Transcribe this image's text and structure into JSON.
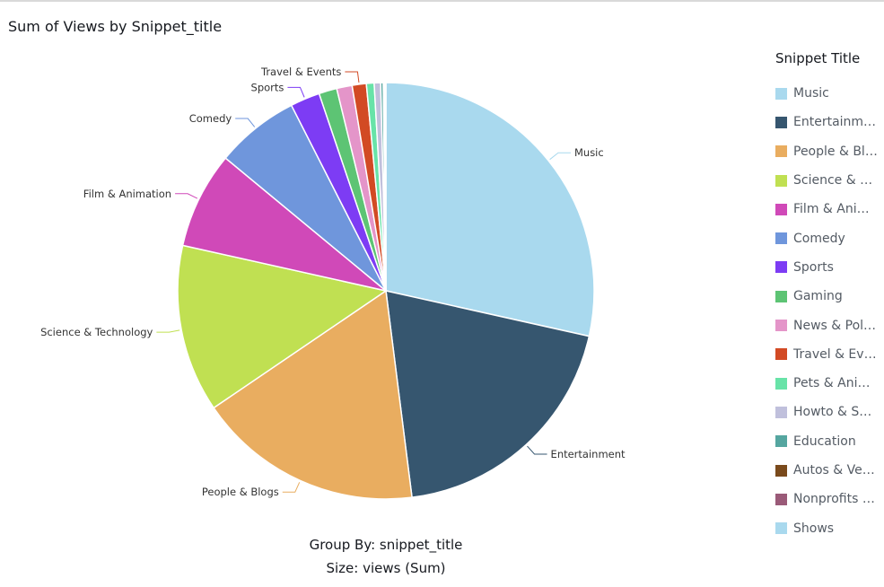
{
  "chart_data": {
    "type": "pie",
    "title": "Sum of Views by Snippet_title",
    "subtitle_group": "Group By: snippet_title",
    "subtitle_size": "Size: views (Sum)",
    "legend_title": "Snippet Title",
    "legend_position": "right",
    "slices": [
      {
        "name": "Music",
        "value": 28.5,
        "color": "#a9d9ee",
        "label": "Music"
      },
      {
        "name": "Entertainment",
        "value": 19.5,
        "color": "#36566f",
        "label": "Entertainment"
      },
      {
        "name": "People & Blogs",
        "value": 17.5,
        "color": "#e9ad60",
        "label": "People & Blogs"
      },
      {
        "name": "Science & Technology",
        "value": 13.0,
        "color": "#c0e052",
        "label": "Science & Technology"
      },
      {
        "name": "Film & Animation",
        "value": 7.5,
        "color": "#d049b8",
        "label": "Film & Animation"
      },
      {
        "name": "Comedy",
        "value": 6.5,
        "color": "#6f96dc",
        "label": "Comedy"
      },
      {
        "name": "Sports",
        "value": 2.3,
        "color": "#7d3cf4",
        "label": "Sports"
      },
      {
        "name": "Gaming",
        "value": 1.4,
        "color": "#5dc474",
        "label": ""
      },
      {
        "name": "News & Politics",
        "value": 1.2,
        "color": "#e495c9",
        "label": ""
      },
      {
        "name": "Travel & Events",
        "value": 1.1,
        "color": "#d24a24",
        "label": "Travel & Events"
      },
      {
        "name": "Pets & Animals",
        "value": 0.6,
        "color": "#68e3a8",
        "label": ""
      },
      {
        "name": "Howto & Style",
        "value": 0.5,
        "color": "#c0c0dc",
        "label": ""
      },
      {
        "name": "Education",
        "value": 0.2,
        "color": "#55a6a0",
        "label": ""
      },
      {
        "name": "Autos & Vehicles",
        "value": 0.1,
        "color": "#7a4a1c",
        "label": ""
      },
      {
        "name": "Nonprofits & Activism",
        "value": 0.05,
        "color": "#9a5a78",
        "label": ""
      },
      {
        "name": "Shows",
        "value": 0.05,
        "color": "#a9d9ee",
        "label": ""
      }
    ],
    "legend_labels": [
      "Music",
      "Entertainm…",
      "People & Bl…",
      "Science & T…",
      "Film & Ani…",
      "Comedy",
      "Sports",
      "Gaming",
      "News & Pol…",
      "Travel & Ev…",
      "Pets & Ani…",
      "Howto & S…",
      "Education",
      "Autos & Ve…",
      "Nonprofits …",
      "Shows"
    ]
  }
}
